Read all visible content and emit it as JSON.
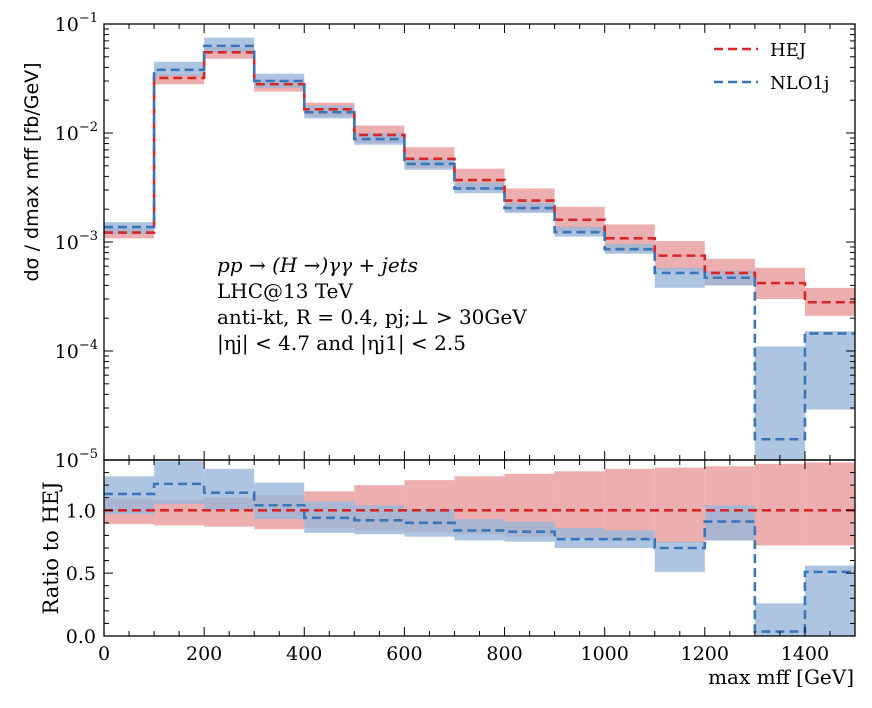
{
  "colors": {
    "hej": "#d62728",
    "hej_band": "#e9a0a0",
    "nlo": "#3a75b8",
    "nlo_band": "#9ab7da"
  },
  "legend": {
    "hej_label": "HEJ",
    "nlo_label": "NLO1j",
    "placement": "top-right"
  },
  "annotation": {
    "line1": "pp → (H →)γγ + jets",
    "line2": "LHC@13 TeV",
    "line3": "anti-kt, R = 0.4, pj;⊥ > 30GeV",
    "line4": "|ηj| < 4.7 and |ηj1| < 2.5"
  },
  "chart_data": [
    {
      "type": "step",
      "panel": "upper",
      "ylabel": "dσ / dmax mff [fb/GeV]",
      "yscale": "log",
      "ylim": [
        1e-05,
        0.1
      ],
      "xlim": [
        0,
        1500
      ],
      "ytick_labels": [
        "10−5",
        "10−4",
        "10−3",
        "10−2",
        "10−1"
      ],
      "bin_edges": [
        0,
        100,
        200,
        300,
        400,
        500,
        600,
        700,
        800,
        900,
        1000,
        1100,
        1200,
        1300,
        1400,
        1500
      ],
      "series": [
        {
          "name": "HEJ",
          "values": [
            0.00122,
            0.032,
            0.055,
            0.028,
            0.0165,
            0.0096,
            0.0058,
            0.0037,
            0.0024,
            0.0016,
            0.00108,
            0.00075,
            0.00052,
            0.00042,
            0.00028
          ],
          "band_low": [
            0.00108,
            0.028,
            0.048,
            0.024,
            0.0142,
            0.0081,
            0.0048,
            0.003,
            0.0019,
            0.00125,
            0.00082,
            0.00055,
            0.0004,
            0.0003,
            0.00021
          ],
          "band_high": [
            0.00133,
            0.0345,
            0.061,
            0.031,
            0.019,
            0.0117,
            0.0074,
            0.0047,
            0.0031,
            0.0021,
            0.00145,
            0.00102,
            0.0007,
            0.00058,
            0.00038
          ]
        },
        {
          "name": "NLO1j",
          "values": [
            0.00137,
            0.038,
            0.063,
            0.03,
            0.0155,
            0.0088,
            0.0052,
            0.0031,
            0.00205,
            0.00123,
            0.00086,
            0.00052,
            0.00047,
            1.55e-05,
            0.000145
          ],
          "band_low": [
            0.00118,
            0.0335,
            0.055,
            0.026,
            0.0136,
            0.0078,
            0.0046,
            0.0028,
            0.00185,
            0.00112,
            0.00078,
            0.00038,
            0.0004,
            1e-05,
            2.9e-05
          ],
          "band_high": [
            0.00152,
            0.045,
            0.075,
            0.035,
            0.0178,
            0.01,
            0.0058,
            0.0035,
            0.0023,
            0.00138,
            0.00096,
            0.00058,
            0.00054,
            0.00011,
            0.000152
          ]
        }
      ]
    },
    {
      "type": "step",
      "panel": "lower",
      "ylabel": "Ratio to HEJ",
      "xlabel": "max mff [GeV]",
      "ylim": [
        0.0,
        1.4
      ],
      "xlim": [
        0,
        1500
      ],
      "xticks": [
        0,
        200,
        400,
        600,
        800,
        1000,
        1200,
        1400
      ],
      "yticks": [
        0.0,
        0.5,
        1.0
      ],
      "bin_edges": [
        0,
        100,
        200,
        300,
        400,
        500,
        600,
        700,
        800,
        900,
        1000,
        1100,
        1200,
        1300,
        1400,
        1500
      ],
      "series": [
        {
          "name": "HEJ",
          "values": [
            1,
            1,
            1,
            1,
            1,
            1,
            1,
            1,
            1,
            1,
            1,
            1,
            1,
            1,
            1
          ],
          "band_low": [
            0.89,
            0.88,
            0.87,
            0.85,
            0.86,
            0.84,
            0.83,
            0.81,
            0.79,
            0.78,
            0.76,
            0.74,
            0.76,
            0.72,
            0.72
          ],
          "band_high": [
            1.09,
            1.08,
            1.1,
            1.12,
            1.15,
            1.2,
            1.24,
            1.27,
            1.29,
            1.31,
            1.33,
            1.34,
            1.35,
            1.37,
            1.38
          ]
        },
        {
          "name": "NLO1j",
          "values": [
            1.13,
            1.21,
            1.14,
            1.04,
            0.94,
            0.92,
            0.9,
            0.84,
            0.83,
            0.77,
            0.77,
            0.7,
            0.91,
            0.035,
            0.51
          ],
          "band_low": [
            0.97,
            1.05,
            1.0,
            0.93,
            0.82,
            0.81,
            0.79,
            0.76,
            0.75,
            0.7,
            0.7,
            0.51,
            0.76,
            0.0,
            0.0
          ],
          "band_high": [
            1.27,
            1.39,
            1.33,
            1.22,
            1.07,
            1.04,
            1.01,
            0.93,
            0.91,
            0.86,
            0.84,
            0.75,
            1.04,
            0.26,
            0.56
          ]
        }
      ]
    }
  ]
}
